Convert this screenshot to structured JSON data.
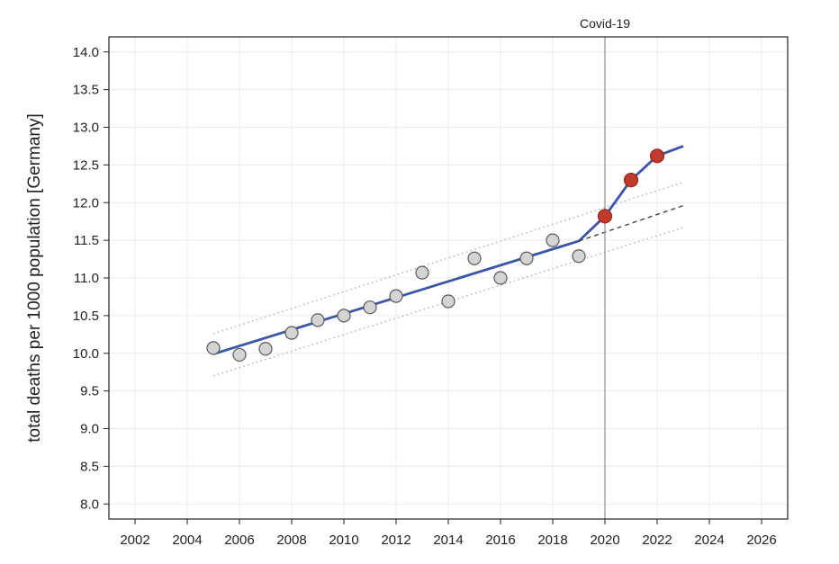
{
  "chart_data": {
    "type": "line",
    "title": "",
    "xlabel": "",
    "ylabel": "total deaths per 1000 population [Germany]",
    "xlim": [
      2001,
      2027
    ],
    "ylim": [
      7.8,
      14.2
    ],
    "x_ticks": [
      2002,
      2004,
      2006,
      2008,
      2010,
      2012,
      2014,
      2016,
      2018,
      2020,
      2022,
      2024,
      2026
    ],
    "y_ticks": [
      8.0,
      8.5,
      9.0,
      9.5,
      10.0,
      10.5,
      11.0,
      11.5,
      12.0,
      12.5,
      13.0,
      13.5,
      14.0
    ],
    "x_tick_labels": [
      "2002",
      "2004",
      "2006",
      "2008",
      "2010",
      "2012",
      "2014",
      "2016",
      "2018",
      "2020",
      "2022",
      "2024",
      "2026"
    ],
    "y_tick_labels": [
      "8.0",
      "8.5",
      "9.0",
      "9.5",
      "10.0",
      "10.5",
      "11.0",
      "11.5",
      "12.0",
      "12.5",
      "13.0",
      "13.5",
      "14.0"
    ],
    "grid": true,
    "series": [
      {
        "kind": "scatter",
        "color": "#d4d4d4",
        "x": [
          2005,
          2006,
          2007,
          2008,
          2009,
          2010,
          2011,
          2012,
          2013,
          2014,
          2015,
          2016,
          2017,
          2018,
          2019
        ],
        "values": [
          10.07,
          9.98,
          10.06,
          10.27,
          10.44,
          10.5,
          10.61,
          10.76,
          11.07,
          10.69,
          11.26,
          11.0,
          11.26,
          11.5,
          11.29
        ]
      },
      {
        "kind": "scatter",
        "color": "#c0392b",
        "x": [
          2020,
          2021,
          2022
        ],
        "values": [
          11.82,
          12.3,
          12.62
        ]
      },
      {
        "kind": "line",
        "style": "solid",
        "color": "#3b55a8",
        "x": [
          2005,
          2019,
          2020,
          2021,
          2022,
          2023
        ],
        "values": [
          9.99,
          11.49,
          11.82,
          12.3,
          12.62,
          12.75
        ]
      },
      {
        "kind": "line",
        "style": "dashed",
        "color": "#444444",
        "x": [
          2019,
          2023
        ],
        "values": [
          11.49,
          11.96
        ]
      },
      {
        "kind": "line",
        "style": "dotted",
        "color": "#aaaaaa",
        "x": [
          2005,
          2023
        ],
        "values": [
          10.26,
          12.27
        ]
      },
      {
        "kind": "line",
        "style": "dotted",
        "color": "#aaaaaa",
        "x": [
          2005,
          2023
        ],
        "values": [
          9.7,
          11.67
        ]
      }
    ],
    "annotations": [
      {
        "type": "vline",
        "x": 2020,
        "label": "Covid-19",
        "color": "#999999"
      }
    ]
  }
}
